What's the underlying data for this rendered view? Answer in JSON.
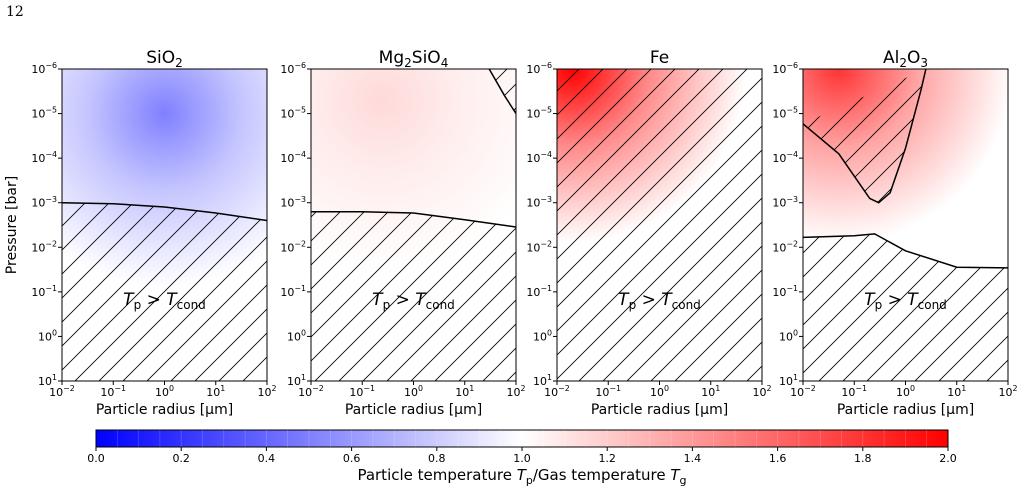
{
  "page_number": "12",
  "colormap": {
    "low": "#0000ff",
    "mid": "#ffffff",
    "high": "#ff0000"
  },
  "chart_data": [
    {
      "type": "heatmap",
      "title_main": "SiO",
      "title_sub": "2",
      "title_rest": "",
      "xlabel": "Particle radius [µm]",
      "ylabel": "Pressure [bar]",
      "x_scale": "log",
      "y_scale": "log",
      "xlim": [
        0.01,
        100
      ],
      "ylim": [
        10,
        1e-06
      ],
      "x_ticks": [
        {
          "b": "10",
          "e": "−2"
        },
        {
          "b": "10",
          "e": "−1"
        },
        {
          "b": "10",
          "e": "0"
        },
        {
          "b": "10",
          "e": "1"
        },
        {
          "b": "10",
          "e": "2"
        }
      ],
      "y_ticks": [
        {
          "b": "10",
          "e": "−6"
        },
        {
          "b": "10",
          "e": "−5"
        },
        {
          "b": "10",
          "e": "−4"
        },
        {
          "b": "10",
          "e": "−3"
        },
        {
          "b": "10",
          "e": "−2"
        },
        {
          "b": "10",
          "e": "−1"
        },
        {
          "b": "10",
          "e": "0"
        },
        {
          "b": "10",
          "e": "1"
        }
      ],
      "annotation": {
        "T1": "T",
        "s1": "p",
        "gt": " > ",
        "T2": "T",
        "s2": "cond"
      },
      "boundary_curve": [
        [
          0.01,
          0.001
        ],
        [
          0.1,
          0.00105
        ],
        [
          1,
          0.00125
        ],
        [
          10,
          0.0017
        ],
        [
          100,
          0.0025
        ]
      ],
      "upper_curve": [],
      "peak": {
        "x": 1,
        "y": 1e-05,
        "value": 0.5
      }
    },
    {
      "type": "heatmap",
      "title_main": "Mg",
      "title_sub": "2",
      "title_rest": "SiO",
      "title_sub2": "4",
      "xlabel": "Particle radius [µm]",
      "ylabel": "",
      "x_scale": "log",
      "y_scale": "log",
      "xlim": [
        0.01,
        100
      ],
      "ylim": [
        10,
        1e-06
      ],
      "x_ticks": [
        {
          "b": "10",
          "e": "−2"
        },
        {
          "b": "10",
          "e": "−1"
        },
        {
          "b": "10",
          "e": "0"
        },
        {
          "b": "10",
          "e": "1"
        },
        {
          "b": "10",
          "e": "2"
        }
      ],
      "y_ticks": [
        {
          "b": "10",
          "e": "−6"
        },
        {
          "b": "10",
          "e": "−5"
        },
        {
          "b": "10",
          "e": "−4"
        },
        {
          "b": "10",
          "e": "−3"
        },
        {
          "b": "10",
          "e": "−2"
        },
        {
          "b": "10",
          "e": "−1"
        },
        {
          "b": "10",
          "e": "0"
        },
        {
          "b": "10",
          "e": "1"
        }
      ],
      "annotation": {
        "T1": "T",
        "s1": "p",
        "gt": " > ",
        "T2": "T",
        "s2": "cond"
      },
      "boundary_curve": [
        [
          0.01,
          0.0016
        ],
        [
          0.1,
          0.0016
        ],
        [
          1,
          0.0017
        ],
        [
          10,
          0.0024
        ],
        [
          100,
          0.0035
        ]
      ],
      "upper_curve": [
        [
          30,
          1e-06
        ],
        [
          60,
          4e-06
        ],
        [
          100,
          1e-05
        ]
      ],
      "peak": {
        "x": 0.25,
        "y": 5e-06,
        "value": 1.15
      }
    },
    {
      "type": "heatmap",
      "title_main": "Fe",
      "title_sub": "",
      "title_rest": "",
      "xlabel": "Particle radius [µm]",
      "ylabel": "",
      "x_scale": "log",
      "y_scale": "log",
      "xlim": [
        0.01,
        100
      ],
      "ylim": [
        10,
        1e-06
      ],
      "x_ticks": [
        {
          "b": "10",
          "e": "−2"
        },
        {
          "b": "10",
          "e": "−1"
        },
        {
          "b": "10",
          "e": "0"
        },
        {
          "b": "10",
          "e": "1"
        },
        {
          "b": "10",
          "e": "2"
        }
      ],
      "y_ticks": [
        {
          "b": "10",
          "e": "−6"
        },
        {
          "b": "10",
          "e": "−5"
        },
        {
          "b": "10",
          "e": "−4"
        },
        {
          "b": "10",
          "e": "−3"
        },
        {
          "b": "10",
          "e": "−2"
        },
        {
          "b": "10",
          "e": "−1"
        },
        {
          "b": "10",
          "e": "0"
        },
        {
          "b": "10",
          "e": "1"
        }
      ],
      "annotation": {
        "T1": "T",
        "s1": "p",
        "gt": " > ",
        "T2": "T",
        "s2": "cond"
      },
      "boundary_curve": [],
      "upper_curve": [],
      "peak": {
        "x": 0.02,
        "y": 1e-06,
        "value": 2.0
      }
    },
    {
      "type": "heatmap",
      "title_main": "Al",
      "title_sub": "2",
      "title_rest": "O",
      "title_sub2": "3",
      "xlabel": "Particle radius [µm]",
      "ylabel": "",
      "x_scale": "log",
      "y_scale": "log",
      "xlim": [
        0.01,
        100
      ],
      "ylim": [
        10,
        1e-06
      ],
      "x_ticks": [
        {
          "b": "10",
          "e": "−2"
        },
        {
          "b": "10",
          "e": "−1"
        },
        {
          "b": "10",
          "e": "0"
        },
        {
          "b": "10",
          "e": "1"
        },
        {
          "b": "10",
          "e": "2"
        }
      ],
      "y_ticks": [
        {
          "b": "10",
          "e": "−6"
        },
        {
          "b": "10",
          "e": "−5"
        },
        {
          "b": "10",
          "e": "−4"
        },
        {
          "b": "10",
          "e": "−3"
        },
        {
          "b": "10",
          "e": "−2"
        },
        {
          "b": "10",
          "e": "−1"
        },
        {
          "b": "10",
          "e": "0"
        },
        {
          "b": "10",
          "e": "1"
        }
      ],
      "annotation": {
        "T1": "T",
        "s1": "p",
        "gt": " > ",
        "T2": "T",
        "s2": "cond"
      },
      "boundary_curve": [
        [
          0.01,
          0.006
        ],
        [
          0.1,
          0.0055
        ],
        [
          0.25,
          0.005
        ],
        [
          1,
          0.012
        ],
        [
          10,
          0.028
        ],
        [
          100,
          0.029
        ]
      ],
      "upper_curve": [
        [
          0.01,
          1.7e-05
        ],
        [
          0.05,
          8e-05
        ],
        [
          0.2,
          0.0008
        ],
        [
          0.3,
          0.001
        ],
        [
          0.5,
          0.0006
        ],
        [
          1,
          6e-05
        ],
        [
          2,
          3e-06
        ],
        [
          2.5,
          1e-06
        ]
      ],
      "peak": {
        "x": 0.05,
        "y": 1e-06,
        "value": 1.8
      }
    }
  ],
  "colorbar": {
    "min": 0.0,
    "max": 2.0,
    "ticks": [
      "0.0",
      "0.2",
      "0.4",
      "0.6",
      "0.8",
      "1.0",
      "1.2",
      "1.4",
      "1.6",
      "1.8",
      "2.0"
    ],
    "label_pre": "Particle temperature ",
    "label_T1": "T",
    "label_s1": "p",
    "label_mid": "/Gas temperature ",
    "label_T2": "T",
    "label_s2": "g"
  }
}
